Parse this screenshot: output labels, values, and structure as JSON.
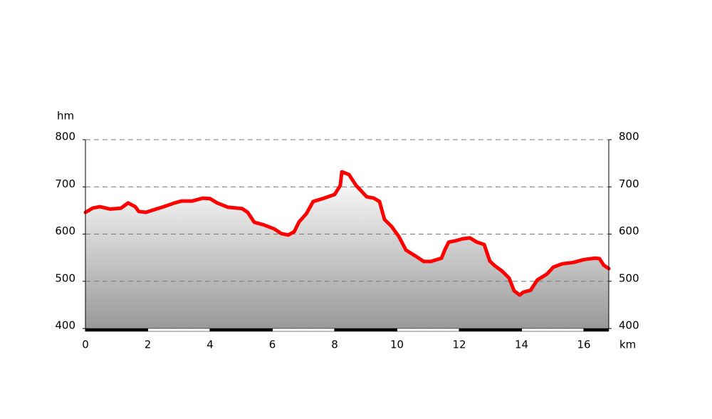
{
  "chart_data": {
    "type": "area",
    "y_label": "hm",
    "x_label": "km",
    "x": [
      0,
      0.23,
      0.46,
      0.8,
      1.14,
      1.37,
      1.6,
      1.71,
      1.94,
      2.17,
      2.51,
      2.86,
      3.09,
      3.43,
      3.77,
      4.0,
      4.23,
      4.57,
      5.03,
      5.21,
      5.42,
      5.71,
      6.06,
      6.29,
      6.51,
      6.7,
      6.86,
      7.09,
      7.31,
      7.66,
      8.0,
      8.18,
      8.23,
      8.46,
      8.69,
      9.03,
      9.26,
      9.44,
      9.6,
      9.83,
      10.06,
      10.29,
      10.63,
      10.86,
      11.09,
      11.43,
      11.54,
      11.66,
      11.89,
      12.11,
      12.34,
      12.57,
      12.8,
      12.98,
      13.14,
      13.37,
      13.6,
      13.76,
      13.94,
      14.06,
      14.29,
      14.51,
      14.81,
      15.02,
      15.31,
      15.66,
      16.0,
      16.34,
      16.5,
      16.64,
      16.8
    ],
    "values": [
      646,
      655,
      658,
      653,
      655,
      666,
      658,
      648,
      646,
      651,
      658,
      666,
      670,
      670,
      676,
      675,
      666,
      657,
      654,
      646,
      625,
      620,
      611,
      601,
      598,
      605,
      626,
      643,
      669,
      676,
      684,
      703,
      732,
      726,
      703,
      679,
      676,
      669,
      631,
      616,
      595,
      566,
      552,
      542,
      542,
      549,
      567,
      583,
      586,
      590,
      592,
      583,
      578,
      543,
      533,
      522,
      507,
      480,
      471,
      477,
      481,
      503,
      515,
      530,
      537,
      540,
      546,
      549,
      548,
      534,
      527
    ],
    "color": "#ff0000",
    "xlim": [
      0,
      16.8
    ],
    "xticks": [
      0,
      2,
      4,
      6,
      8,
      10,
      12,
      14,
      16
    ],
    "ylim": [
      400,
      800
    ],
    "yticks": [
      400,
      500,
      600,
      700,
      800
    ],
    "grid": true
  }
}
